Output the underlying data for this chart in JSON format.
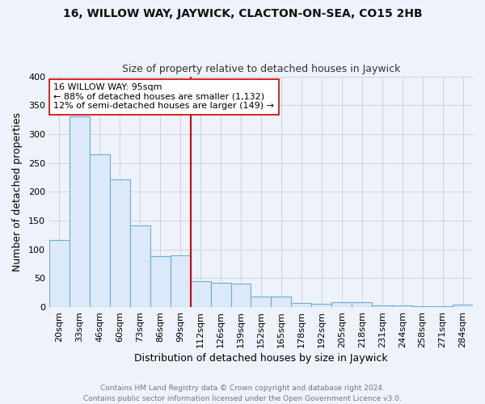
{
  "title1": "16, WILLOW WAY, JAYWICK, CLACTON-ON-SEA, CO15 2HB",
  "title2": "Size of property relative to detached houses in Jaywick",
  "xlabel": "Distribution of detached houses by size in Jaywick",
  "ylabel": "Number of detached properties",
  "bar_labels": [
    "20sqm",
    "33sqm",
    "46sqm",
    "60sqm",
    "73sqm",
    "86sqm",
    "99sqm",
    "112sqm",
    "126sqm",
    "139sqm",
    "152sqm",
    "165sqm",
    "178sqm",
    "192sqm",
    "205sqm",
    "218sqm",
    "231sqm",
    "244sqm",
    "258sqm",
    "271sqm",
    "284sqm"
  ],
  "bar_values": [
    116,
    331,
    265,
    222,
    142,
    88,
    90,
    45,
    42,
    41,
    19,
    19,
    7,
    6,
    8,
    9,
    3,
    3,
    2,
    1,
    5
  ],
  "bar_color": "#dce9f8",
  "bar_edge_color": "#6baed6",
  "vline_x": 6.5,
  "vline_color": "#cc0000",
  "annotation_text": "16 WILLOW WAY: 95sqm\n← 88% of detached houses are smaller (1,132)\n12% of semi-detached houses are larger (149) →",
  "annotation_box_color": "#ffffff",
  "annotation_box_edge": "#cc0000",
  "ylim": [
    0,
    400
  ],
  "yticks": [
    0,
    50,
    100,
    150,
    200,
    250,
    300,
    350,
    400
  ],
  "footer": "Contains HM Land Registry data © Crown copyright and database right 2024.\nContains public sector information licensed under the Open Government Licence v3.0.",
  "bg_color": "#eef2fb",
  "grid_color": "#c8cdd8",
  "title1_fontsize": 10,
  "title2_fontsize": 9,
  "xlabel_fontsize": 9,
  "ylabel_fontsize": 9,
  "tick_fontsize": 8,
  "annotation_fontsize": 8
}
